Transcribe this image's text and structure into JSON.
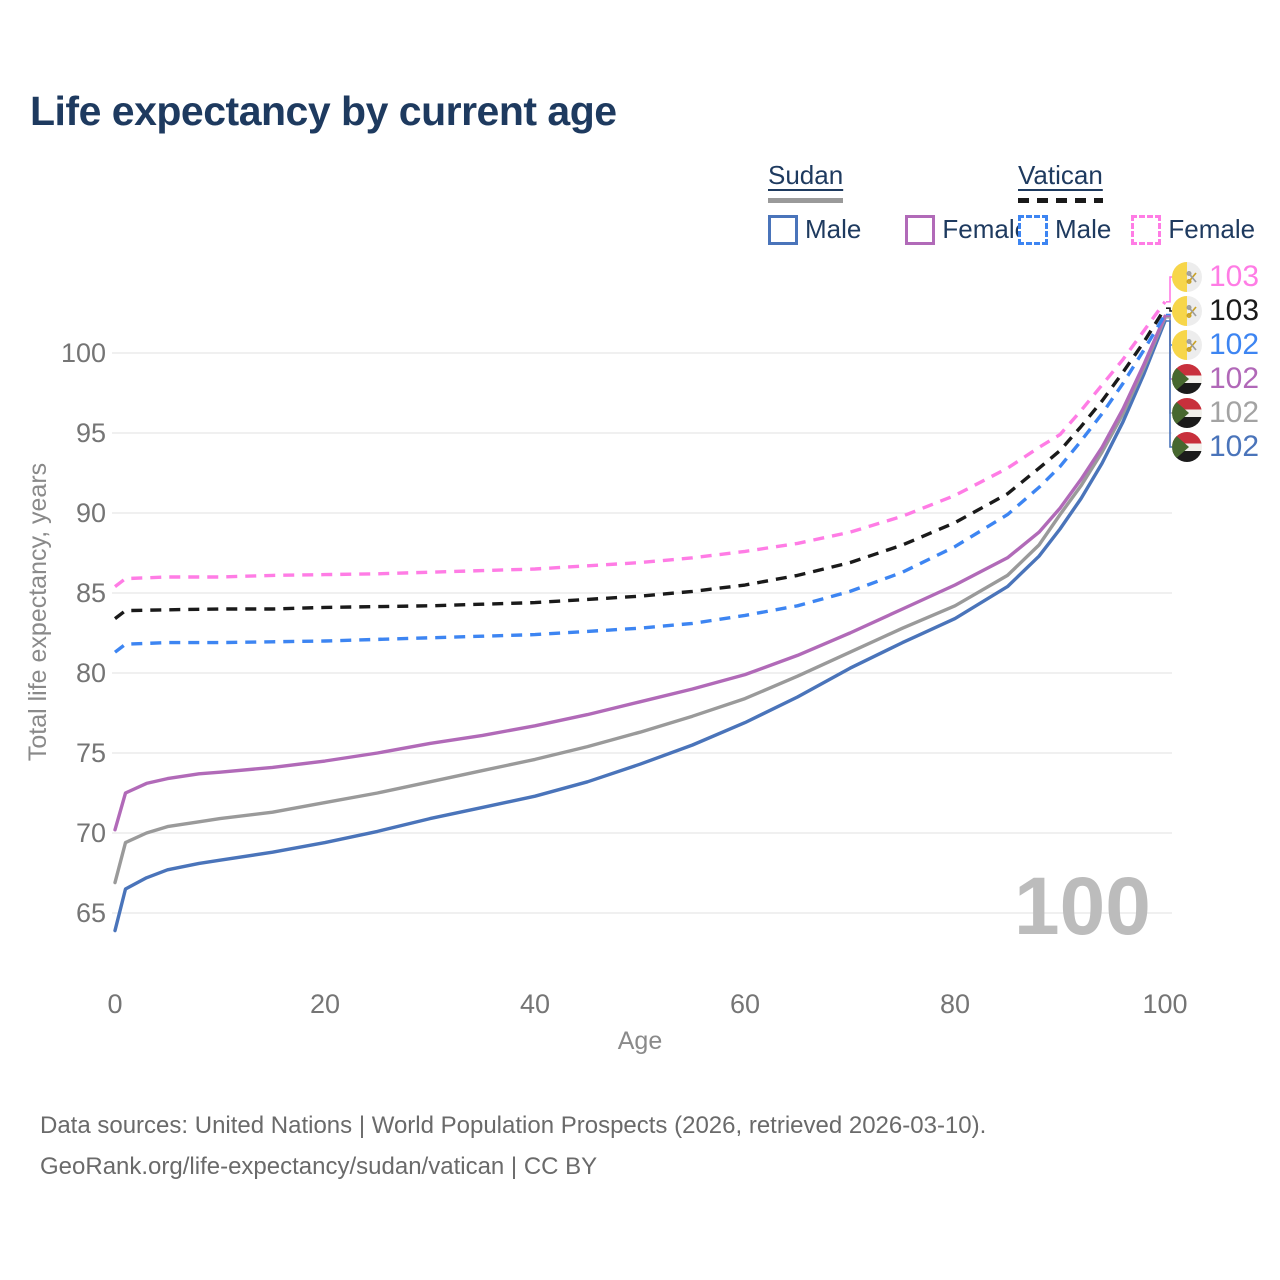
{
  "title": "Life expectancy by current age",
  "watermark": "100",
  "footer": {
    "line1": "Data sources: United Nations | World Population Prospects (2026, retrieved 2026-03-10).",
    "line2": "GeoRank.org/life-expectancy/sudan/vatican | CC BY"
  },
  "legend": {
    "groups": [
      {
        "name": "Sudan",
        "key_style": "solid",
        "key_color": "#9a9a9a",
        "items": [
          {
            "label": "Male",
            "color": "#4a74ba",
            "dash": false
          },
          {
            "label": "Female",
            "color": "#b16ab8",
            "dash": false
          }
        ]
      },
      {
        "name": "Vatican",
        "key_style": "dashed",
        "key_color": "#1a1a1a",
        "items": [
          {
            "label": "Male",
            "color": "#3d85f2",
            "dash": true
          },
          {
            "label": "Female",
            "color": "#ff7ce5",
            "dash": true
          }
        ]
      }
    ]
  },
  "chart_data": {
    "type": "line",
    "title": "Life expectancy by current age",
    "xlabel": "Age",
    "ylabel": "Total life expectancy, years",
    "xlim": [
      0,
      100
    ],
    "ylim": [
      63,
      104
    ],
    "x_ticks": [
      0,
      20,
      40,
      60,
      80,
      100
    ],
    "y_ticks": [
      65,
      70,
      75,
      80,
      85,
      90,
      95,
      100
    ],
    "grid": "horizontal",
    "legend_position": "top-right",
    "series": [
      {
        "id": "sudan_male",
        "name": "Sudan Male",
        "color": "#4a74ba",
        "dash": false,
        "points": [
          [
            0,
            63.9
          ],
          [
            1,
            66.5
          ],
          [
            3,
            67.2
          ],
          [
            5,
            67.7
          ],
          [
            8,
            68.1
          ],
          [
            10,
            68.3
          ],
          [
            15,
            68.8
          ],
          [
            20,
            69.4
          ],
          [
            25,
            70.1
          ],
          [
            30,
            70.9
          ],
          [
            35,
            71.6
          ],
          [
            40,
            72.3
          ],
          [
            45,
            73.2
          ],
          [
            50,
            74.3
          ],
          [
            55,
            75.5
          ],
          [
            60,
            76.9
          ],
          [
            65,
            78.5
          ],
          [
            70,
            80.3
          ],
          [
            75,
            81.9
          ],
          [
            80,
            83.4
          ],
          [
            85,
            85.4
          ],
          [
            88,
            87.3
          ],
          [
            90,
            89.0
          ],
          [
            92,
            90.9
          ],
          [
            94,
            93.1
          ],
          [
            96,
            95.7
          ],
          [
            98,
            98.7
          ],
          [
            100,
            102.0
          ]
        ]
      },
      {
        "id": "sudan_all",
        "name": "Sudan Both sexes",
        "color": "#9a9a9a",
        "dash": false,
        "points": [
          [
            0,
            66.9
          ],
          [
            1,
            69.4
          ],
          [
            3,
            70.0
          ],
          [
            5,
            70.4
          ],
          [
            8,
            70.7
          ],
          [
            10,
            70.9
          ],
          [
            15,
            71.3
          ],
          [
            20,
            71.9
          ],
          [
            25,
            72.5
          ],
          [
            30,
            73.2
          ],
          [
            35,
            73.9
          ],
          [
            40,
            74.6
          ],
          [
            45,
            75.4
          ],
          [
            50,
            76.3
          ],
          [
            55,
            77.3
          ],
          [
            60,
            78.4
          ],
          [
            65,
            79.8
          ],
          [
            70,
            81.3
          ],
          [
            75,
            82.8
          ],
          [
            80,
            84.2
          ],
          [
            85,
            86.1
          ],
          [
            88,
            88.0
          ],
          [
            90,
            89.9
          ],
          [
            92,
            91.7
          ],
          [
            94,
            93.8
          ],
          [
            96,
            96.2
          ],
          [
            98,
            99.1
          ],
          [
            100,
            102.2
          ]
        ]
      },
      {
        "id": "sudan_female",
        "name": "Sudan Female",
        "color": "#b16ab8",
        "dash": false,
        "points": [
          [
            0,
            70.2
          ],
          [
            1,
            72.5
          ],
          [
            3,
            73.1
          ],
          [
            5,
            73.4
          ],
          [
            8,
            73.7
          ],
          [
            10,
            73.8
          ],
          [
            15,
            74.1
          ],
          [
            20,
            74.5
          ],
          [
            25,
            75.0
          ],
          [
            30,
            75.6
          ],
          [
            35,
            76.1
          ],
          [
            40,
            76.7
          ],
          [
            45,
            77.4
          ],
          [
            50,
            78.2
          ],
          [
            55,
            79.0
          ],
          [
            60,
            79.9
          ],
          [
            65,
            81.1
          ],
          [
            70,
            82.5
          ],
          [
            75,
            84.0
          ],
          [
            80,
            85.5
          ],
          [
            85,
            87.2
          ],
          [
            88,
            88.8
          ],
          [
            90,
            90.3
          ],
          [
            92,
            92.1
          ],
          [
            94,
            94.1
          ],
          [
            96,
            96.5
          ],
          [
            98,
            99.3
          ],
          [
            100,
            102.3
          ]
        ]
      },
      {
        "id": "vatican_male",
        "name": "Vatican Male",
        "color": "#3d85f2",
        "dash": true,
        "points": [
          [
            0,
            81.3
          ],
          [
            1,
            81.8
          ],
          [
            5,
            81.9
          ],
          [
            10,
            81.9
          ],
          [
            15,
            81.95
          ],
          [
            20,
            82.0
          ],
          [
            25,
            82.1
          ],
          [
            30,
            82.2
          ],
          [
            35,
            82.3
          ],
          [
            40,
            82.4
          ],
          [
            45,
            82.6
          ],
          [
            50,
            82.8
          ],
          [
            55,
            83.1
          ],
          [
            60,
            83.6
          ],
          [
            65,
            84.2
          ],
          [
            70,
            85.1
          ],
          [
            75,
            86.3
          ],
          [
            80,
            87.9
          ],
          [
            85,
            89.9
          ],
          [
            88,
            91.6
          ],
          [
            90,
            92.9
          ],
          [
            92,
            94.5
          ],
          [
            94,
            96.2
          ],
          [
            96,
            98.1
          ],
          [
            98,
            100.2
          ],
          [
            100,
            102.4
          ]
        ]
      },
      {
        "id": "vatican_all",
        "name": "Vatican Both sexes",
        "color": "#1a1a1a",
        "dash": true,
        "points": [
          [
            0,
            83.4
          ],
          [
            1,
            83.9
          ],
          [
            5,
            83.95
          ],
          [
            10,
            84.0
          ],
          [
            15,
            84.0
          ],
          [
            20,
            84.1
          ],
          [
            25,
            84.15
          ],
          [
            30,
            84.2
          ],
          [
            35,
            84.3
          ],
          [
            40,
            84.4
          ],
          [
            45,
            84.6
          ],
          [
            50,
            84.8
          ],
          [
            55,
            85.1
          ],
          [
            60,
            85.5
          ],
          [
            65,
            86.1
          ],
          [
            70,
            86.9
          ],
          [
            75,
            88.0
          ],
          [
            80,
            89.4
          ],
          [
            85,
            91.2
          ],
          [
            88,
            92.8
          ],
          [
            90,
            93.9
          ],
          [
            92,
            95.4
          ],
          [
            94,
            97.0
          ],
          [
            96,
            98.8
          ],
          [
            98,
            100.7
          ],
          [
            100,
            102.8
          ]
        ]
      },
      {
        "id": "vatican_female",
        "name": "Vatican Female",
        "color": "#ff7ce5",
        "dash": true,
        "points": [
          [
            0,
            85.4
          ],
          [
            1,
            85.9
          ],
          [
            5,
            86.0
          ],
          [
            10,
            86.0
          ],
          [
            15,
            86.1
          ],
          [
            20,
            86.15
          ],
          [
            25,
            86.2
          ],
          [
            30,
            86.3
          ],
          [
            35,
            86.4
          ],
          [
            40,
            86.5
          ],
          [
            45,
            86.7
          ],
          [
            50,
            86.9
          ],
          [
            55,
            87.2
          ],
          [
            60,
            87.6
          ],
          [
            65,
            88.1
          ],
          [
            70,
            88.8
          ],
          [
            75,
            89.8
          ],
          [
            80,
            91.1
          ],
          [
            85,
            92.8
          ],
          [
            88,
            94.1
          ],
          [
            90,
            94.9
          ],
          [
            92,
            96.4
          ],
          [
            94,
            98.0
          ],
          [
            96,
            99.6
          ],
          [
            98,
            101.4
          ],
          [
            100,
            103.2
          ]
        ]
      }
    ],
    "end_labels": [
      {
        "value": "103",
        "series": "vatican_female",
        "flag": "vatican",
        "color": "#ff7ce5"
      },
      {
        "value": "103",
        "series": "vatican_all",
        "flag": "vatican",
        "color": "#1a1a1a"
      },
      {
        "value": "102",
        "series": "vatican_male",
        "flag": "vatican",
        "color": "#3d85f2"
      },
      {
        "value": "102",
        "series": "sudan_female",
        "flag": "sudan",
        "color": "#b168b8"
      },
      {
        "value": "102",
        "series": "sudan_all",
        "flag": "sudan",
        "color": "#a3a3a3"
      },
      {
        "value": "102",
        "series": "sudan_male",
        "flag": "sudan",
        "color": "#4a74ba"
      }
    ]
  },
  "colors": {
    "title": "#1e3a5f",
    "tick": "#757575",
    "axis_title": "#8a8a8a",
    "grid": "#e7e7e7",
    "footer": "#6a6a6a",
    "watermark": "#bcbcbc"
  }
}
